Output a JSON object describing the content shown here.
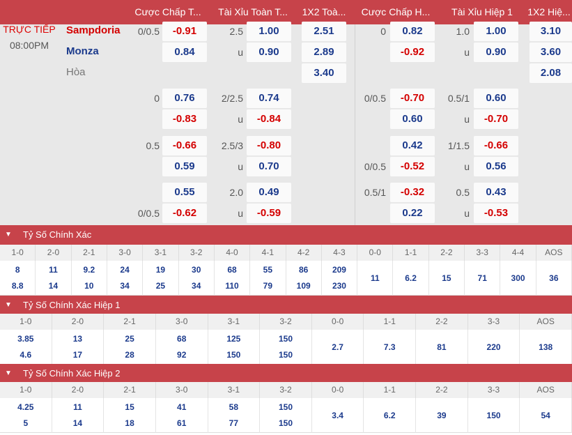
{
  "header": {
    "columns": [
      "Cược Chấp T...",
      "Tài Xỉu Toàn T...",
      "1X2 Toà...",
      "Cược Chấp H...",
      "Tài Xỉu Hiệp 1",
      "1X2 Hiệ..."
    ]
  },
  "match": {
    "status": "TRỰC TIẾP",
    "time": "08:00PM",
    "home": "Sampdoria",
    "away": "Monza",
    "draw": "Hòa"
  },
  "odds": {
    "hdp_ft": {
      "lines": [
        "0/0.5",
        "0",
        "0.5",
        "0/0.5"
      ],
      "main": [
        {
          "line": "0/0.5",
          "home": "-0.91",
          "away": "0.84"
        },
        {
          "line": "0",
          "home": "0.76",
          "away": "-0.83"
        },
        {
          "line": "0.5",
          "home": "-0.66",
          "away": "0.59"
        },
        {
          "line": "0/0.5",
          "home": "0.55",
          "away": "-0.62"
        }
      ]
    },
    "ou_ft": [
      {
        "line": "2.5",
        "over": "1.00",
        "u": "u",
        "under": "0.90"
      },
      {
        "line": "2/2.5",
        "over": "0.74",
        "u": "u",
        "under": "-0.84"
      },
      {
        "line": "2.5/3",
        "over": "-0.80",
        "u": "u",
        "under": "0.70"
      },
      {
        "line": "2.0",
        "over": "0.49",
        "u": "u",
        "under": "-0.59"
      }
    ],
    "x12_ft": {
      "home": "2.51",
      "away": "2.89",
      "draw": "3.40"
    },
    "hdp_h1": [
      {
        "line": "0",
        "home": "0.82",
        "away": "-0.92"
      },
      {
        "line": "0/0.5",
        "home": "-0.70",
        "away": "0.60"
      },
      {
        "line": "0/0.5",
        "home": "0.42",
        "away": "-0.52"
      },
      {
        "line": "0.5/1",
        "home": "-0.32",
        "away": "0.22"
      }
    ],
    "ou_h1": [
      {
        "line": "1.0",
        "over": "1.00",
        "u": "u",
        "under": "0.90"
      },
      {
        "line": "0.5/1",
        "over": "0.60",
        "u": "u",
        "under": "-0.70"
      },
      {
        "line": "1/1.5",
        "over": "-0.66",
        "u": "u",
        "under": "0.56"
      },
      {
        "line": "0.5",
        "over": "0.43",
        "u": "u",
        "under": "-0.53"
      }
    ],
    "x12_h1": {
      "home": "3.10",
      "away": "3.60",
      "draw": "2.08"
    }
  },
  "cs_full": {
    "title": "Tỷ Số Chính Xác",
    "labels": [
      "1-0",
      "2-0",
      "2-1",
      "3-0",
      "3-1",
      "3-2",
      "4-0",
      "4-1",
      "4-2",
      "4-3",
      "0-0",
      "1-1",
      "2-2",
      "3-3",
      "4-4",
      "AOS"
    ],
    "top": [
      "8",
      "11",
      "9.2",
      "24",
      "19",
      "30",
      "68",
      "55",
      "86",
      "209"
    ],
    "bottom": [
      "8.8",
      "14",
      "10",
      "34",
      "25",
      "34",
      "110",
      "79",
      "109",
      "230"
    ],
    "mid": [
      "11",
      "6.2",
      "15",
      "71",
      "300",
      "36"
    ]
  },
  "cs_h1": {
    "title": "Tỷ Số Chính Xác Hiệp 1",
    "labels": [
      "1-0",
      "2-0",
      "2-1",
      "3-0",
      "3-1",
      "3-2",
      "0-0",
      "1-1",
      "2-2",
      "3-3",
      "AOS"
    ],
    "top": [
      "3.85",
      "13",
      "25",
      "68",
      "125",
      "150"
    ],
    "bottom": [
      "4.6",
      "17",
      "28",
      "92",
      "150",
      "150"
    ],
    "mid": [
      "2.7",
      "7.3",
      "81",
      "220",
      "138"
    ]
  },
  "cs_h2": {
    "title": "Tỷ Số Chính Xác Hiệp 2",
    "labels": [
      "1-0",
      "2-0",
      "2-1",
      "3-0",
      "3-1",
      "3-2",
      "0-0",
      "1-1",
      "2-2",
      "3-3",
      "AOS"
    ],
    "top": [
      "4.25",
      "11",
      "15",
      "41",
      "58",
      "150"
    ],
    "bottom": [
      "5",
      "14",
      "18",
      "61",
      "77",
      "150"
    ],
    "mid": [
      "3.4",
      "6.2",
      "39",
      "150",
      "54"
    ]
  }
}
